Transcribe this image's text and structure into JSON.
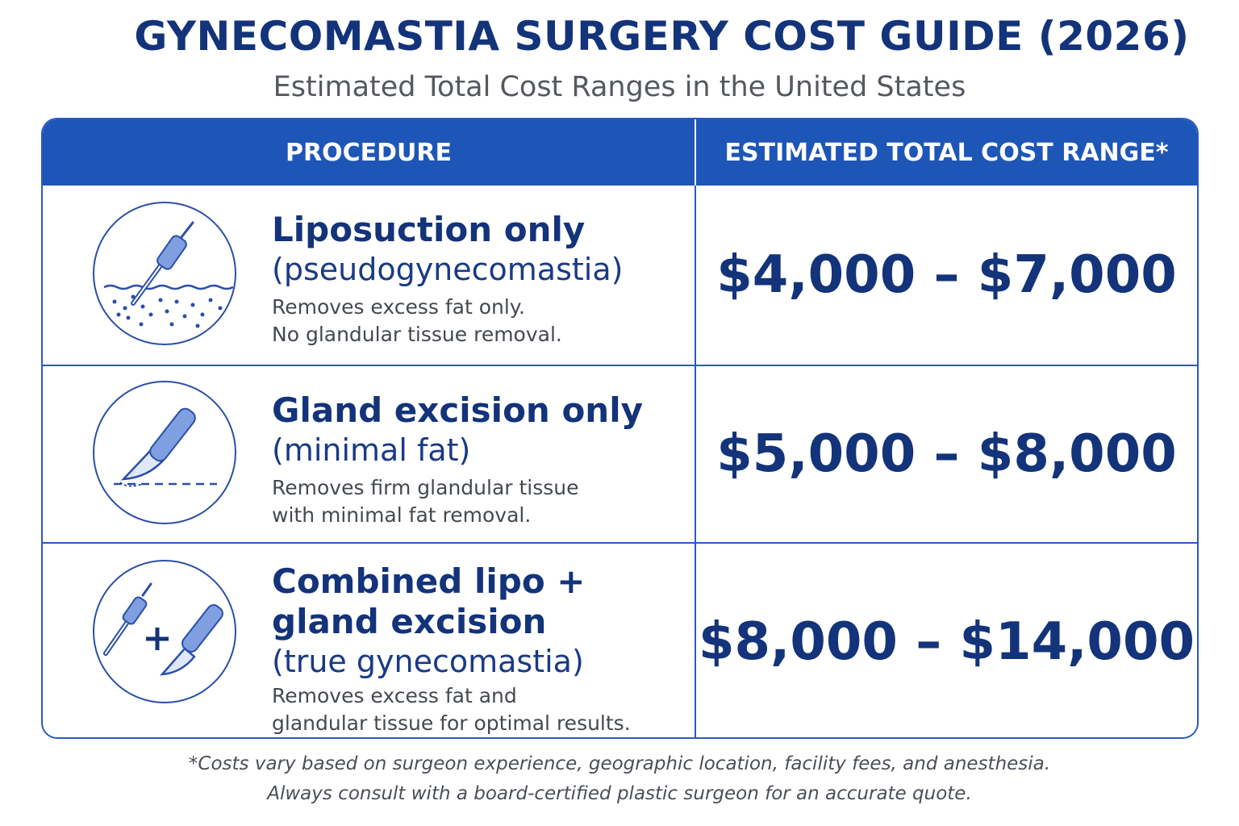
{
  "header": {
    "title": "GYNECOMASTIA SURGERY COST GUIDE (2026)",
    "subtitle": "Estimated Total Cost Ranges in the United States"
  },
  "table": {
    "columns": [
      "PROCEDURE",
      "ESTIMATED TOTAL COST RANGE*"
    ],
    "rows": [
      {
        "icon": "liposuction-cannula-icon",
        "name": "Liposuction only",
        "name_line2": "",
        "qualifier": "(pseudogynecomastia)",
        "desc_line1": "Removes excess fat only.",
        "desc_line2": "No glandular tissue removal.",
        "cost": "$4,000 – $7,000"
      },
      {
        "icon": "scalpel-icon",
        "name": "Gland excision only",
        "name_line2": "",
        "qualifier": "(minimal fat)",
        "desc_line1": "Removes firm glandular tissue",
        "desc_line2": "with minimal fat removal.",
        "cost": "$5,000 – $8,000"
      },
      {
        "icon": "cannula-plus-scalpel-icon",
        "name": "Combined lipo +",
        "name_line2": "gland excision",
        "qualifier": "(true gynecomastia)",
        "desc_line1": "Removes excess fat and",
        "desc_line2": "glandular tissue for optimal results.",
        "cost": "$8,000 – $14,000"
      }
    ]
  },
  "footnote": {
    "line1": "*Costs vary based on surgeon experience, geographic location, facility fees, and anesthesia.",
    "line2": "Always consult with a board-certified plastic surgeon for an accurate quote."
  },
  "colors": {
    "title": "#13337a",
    "header_bg": "#1e56b8",
    "border": "#2a59c0",
    "icon_fill": "#7f9fe0"
  }
}
